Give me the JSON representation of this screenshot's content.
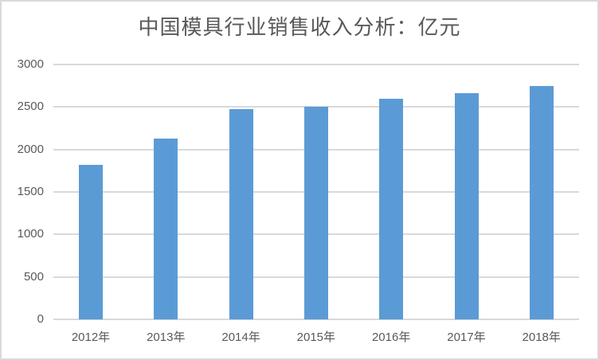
{
  "chart_data": {
    "type": "bar",
    "title": "中国模具行业销售收入分析：亿元",
    "xlabel": "",
    "ylabel": "",
    "categories": [
      "2012年",
      "2013年",
      "2014年",
      "2015年",
      "2016年",
      "2017年",
      "2018年"
    ],
    "values": [
      1815,
      2130,
      2475,
      2500,
      2600,
      2660,
      2750
    ],
    "ylim": [
      0,
      3000
    ],
    "yticks": [
      "0",
      "500",
      "1000",
      "1500",
      "2000",
      "2500",
      "3000"
    ],
    "grid": true,
    "legend": false,
    "colors": {
      "bar": "#5b9bd5",
      "grid": "#d9d9d9",
      "text": "#595959"
    }
  }
}
